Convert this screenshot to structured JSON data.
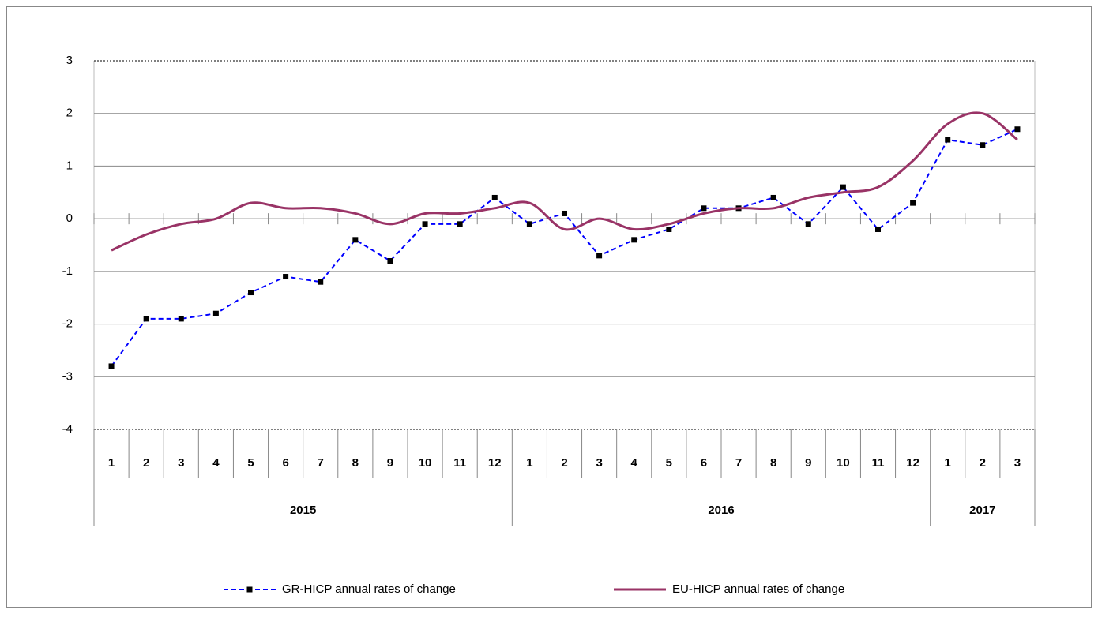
{
  "chart_data": {
    "type": "line",
    "groups": [
      {
        "label": "2015",
        "categories": [
          "1",
          "2",
          "3",
          "4",
          "5",
          "6",
          "7",
          "8",
          "9",
          "10",
          "11",
          "12"
        ]
      },
      {
        "label": "2016",
        "categories": [
          "1",
          "2",
          "3",
          "4",
          "5",
          "6",
          "7",
          "8",
          "9",
          "10",
          "11",
          "12"
        ]
      },
      {
        "label": "2017",
        "categories": [
          "1",
          "2",
          "3"
        ]
      }
    ],
    "series": [
      {
        "name": "GR-HICP annual rates of change",
        "color": "#0000ff",
        "style": "dashed",
        "marker": "square",
        "values": [
          -2.8,
          -1.9,
          -1.9,
          -1.8,
          -1.4,
          -1.1,
          -1.2,
          -0.4,
          -0.8,
          -0.1,
          -0.1,
          0.4,
          -0.1,
          0.1,
          -0.7,
          -0.4,
          -0.2,
          0.2,
          0.2,
          0.4,
          -0.1,
          0.6,
          -0.2,
          0.3,
          1.5,
          1.4,
          1.7
        ]
      },
      {
        "name": "EU-HICP annual rates of change",
        "color": "#993366",
        "style": "smooth",
        "values": [
          -0.6,
          -0.3,
          -0.1,
          0.0,
          0.3,
          0.2,
          0.2,
          0.1,
          -0.1,
          0.1,
          0.1,
          0.2,
          0.3,
          -0.2,
          0.0,
          -0.2,
          -0.1,
          0.1,
          0.2,
          0.2,
          0.4,
          0.5,
          0.6,
          1.1,
          1.8,
          2.0,
          1.5
        ]
      }
    ],
    "ylim": [
      -4,
      3
    ],
    "yticks": [
      -4,
      -3,
      -2,
      -1,
      0,
      1,
      2,
      3
    ],
    "grid": true
  }
}
